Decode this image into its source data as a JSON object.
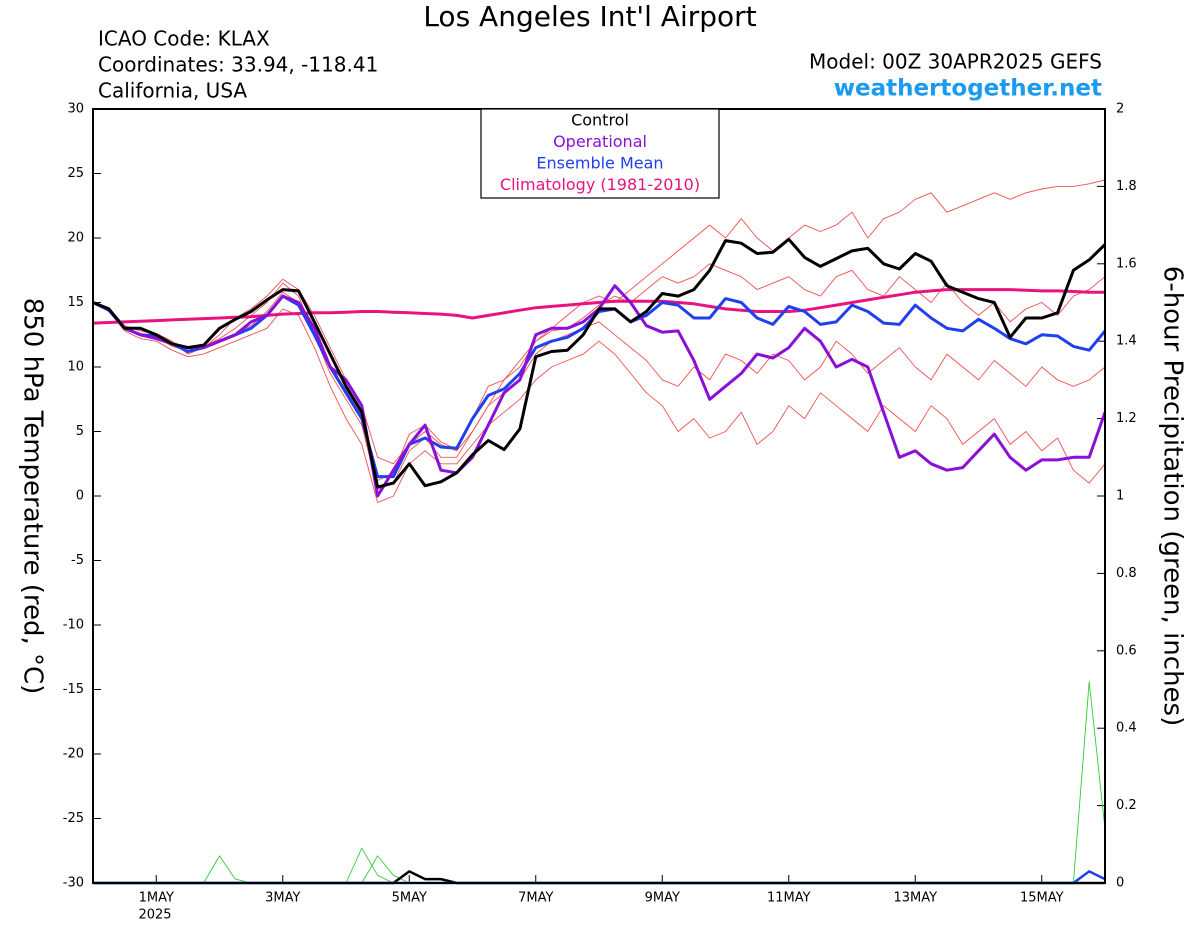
{
  "header": {
    "icao": "ICAO Code: KLAX",
    "coordinates": "Coordinates: 33.94, -118.41",
    "location": "California, USA",
    "model": "Model: 00Z 30APR2025 GEFS",
    "site": "weathertogether.net"
  },
  "chart_data": {
    "type": "line",
    "title": "Los Angeles Int'l Airport",
    "y_label": "850 hPa Temperature (red, °C)",
    "y2_label": "6-hour Precipitation (green, inches)",
    "year_label": "2025",
    "categories": [
      null,
      null,
      null,
      null,
      "1MAY",
      null,
      null,
      null,
      null,
      null,
      null,
      null,
      "3MAY",
      null,
      null,
      null,
      null,
      null,
      null,
      null,
      "5MAY",
      null,
      null,
      null,
      null,
      null,
      null,
      null,
      "7MAY",
      null,
      null,
      null,
      null,
      null,
      null,
      null,
      "9MAY",
      null,
      null,
      null,
      null,
      null,
      null,
      null,
      "11MAY",
      null,
      null,
      null,
      null,
      null,
      null,
      null,
      "13MAY",
      null,
      null,
      null,
      null,
      null,
      null,
      null,
      "15MAY",
      null,
      null,
      null,
      null
    ],
    "ylim": [
      -30,
      30
    ],
    "yticks": [
      -30,
      -25,
      -20,
      -15,
      -10,
      -5,
      0,
      5,
      10,
      15,
      20,
      25,
      30
    ],
    "y2lim": [
      0,
      2
    ],
    "y2ticks": [
      0,
      0.2,
      0.4,
      0.6,
      0.8,
      1,
      1.2,
      1.4,
      1.6,
      1.8,
      2
    ],
    "members": {
      "color": "#f05050",
      "values": [
        [
          15,
          14.6,
          13.2,
          12.8,
          12.6,
          12,
          11,
          11.5,
          12.5,
          13.8,
          14.5,
          15.5,
          16.8,
          16,
          14,
          11.5,
          9,
          7,
          3,
          2.5,
          4,
          5,
          4,
          3.5,
          5,
          7,
          9,
          10,
          12,
          13,
          14,
          15,
          15.5,
          15,
          16,
          17,
          18,
          19,
          20,
          21,
          20,
          21.5,
          20,
          19,
          20,
          21,
          20.5,
          21,
          22,
          20,
          21.5,
          22,
          23,
          23.5,
          22,
          22.5,
          23,
          23.5,
          23,
          23.5,
          23.8,
          24,
          24,
          24.2,
          24.5
        ],
        [
          15,
          14.3,
          12.8,
          12.2,
          12,
          11.3,
          10.8,
          11,
          11.5,
          12,
          12.5,
          13,
          14.5,
          14,
          11.5,
          8.5,
          6,
          4,
          -0.5,
          0,
          2.5,
          3.5,
          2.5,
          2.5,
          4,
          5.5,
          6.5,
          7.5,
          9,
          10,
          10.5,
          11,
          12,
          11,
          9.5,
          8,
          7,
          5,
          6,
          4.5,
          5,
          6.5,
          4,
          5,
          7,
          6,
          8,
          7,
          6,
          5,
          7,
          6,
          5,
          7,
          6,
          4,
          5,
          6,
          4,
          5,
          3.5,
          4.5,
          2,
          1,
          2.5
        ],
        [
          15,
          14.5,
          13.1,
          12.6,
          12.3,
          11.6,
          11.3,
          11.6,
          12.2,
          13,
          14,
          15,
          16.5,
          15.5,
          12.5,
          9.5,
          7.5,
          5.5,
          0.5,
          1,
          3.5,
          4.5,
          3,
          3,
          5,
          7,
          8,
          9,
          11,
          12,
          12.5,
          13,
          13.5,
          12.5,
          11.5,
          10.5,
          9,
          8.5,
          10,
          9,
          11,
          10.5,
          9.5,
          11,
          10.5,
          9,
          10,
          12,
          11,
          9.5,
          10.5,
          11.5,
          10,
          9,
          11,
          10,
          9,
          10.5,
          9.5,
          8.5,
          10,
          9,
          8.5,
          9,
          10
        ],
        [
          15,
          14.4,
          13,
          12.4,
          12.3,
          11.7,
          11.5,
          11.4,
          12,
          12.6,
          13.2,
          14.3,
          15.8,
          15,
          13,
          10.2,
          8.2,
          6.2,
          1.2,
          1.8,
          4.8,
          5.5,
          4.2,
          3.6,
          6,
          8.5,
          9,
          10.5,
          12,
          12.8,
          13,
          13.8,
          14.8,
          15.5,
          15,
          16,
          17,
          16.5,
          17,
          18,
          17.5,
          17,
          16,
          16.5,
          17,
          16,
          15.5,
          17,
          17.5,
          16,
          15.5,
          17,
          16,
          15,
          16.5,
          15,
          14,
          15,
          13.5,
          14.5,
          15,
          14,
          15.5,
          16,
          17
        ]
      ]
    },
    "precip_series": [
      {
        "color": "#33cc33",
        "axis": "y2",
        "values": [
          0,
          0,
          0,
          0,
          0,
          0,
          0,
          0,
          0,
          0,
          0,
          0,
          0,
          0,
          0,
          0,
          0,
          0.09,
          0.02,
          0,
          0,
          0,
          0,
          0,
          0,
          0,
          0,
          0,
          0,
          0,
          0,
          0,
          0,
          0,
          0,
          0,
          0,
          0,
          0,
          0,
          0,
          0,
          0,
          0,
          0,
          0,
          0,
          0,
          0,
          0,
          0,
          0,
          0,
          0,
          0,
          0,
          0,
          0,
          0,
          0,
          0,
          0,
          0,
          0,
          0
        ]
      },
      {
        "color": "#33cc33",
        "axis": "y2",
        "values": [
          0,
          0,
          0,
          0,
          0,
          0,
          0,
          0,
          0.07,
          0.01,
          0,
          0,
          0,
          0,
          0,
          0,
          0,
          0,
          0.07,
          0.02,
          0,
          0,
          0,
          0,
          0,
          0,
          0,
          0,
          0,
          0,
          0,
          0,
          0,
          0,
          0,
          0,
          0,
          0,
          0,
          0,
          0,
          0,
          0,
          0,
          0,
          0,
          0,
          0,
          0,
          0,
          0,
          0,
          0,
          0,
          0,
          0,
          0,
          0,
          0,
          0,
          0,
          0,
          0,
          0.52,
          0.14
        ]
      },
      {
        "color": "#000000",
        "axis": "y2",
        "values": [
          0,
          0,
          0,
          0,
          0,
          0,
          0,
          0,
          0,
          0,
          0,
          0,
          0,
          0,
          0,
          0,
          0,
          0,
          0,
          0,
          0.03,
          0.01,
          0.01,
          0,
          0,
          0,
          0,
          0,
          0,
          0,
          0,
          0,
          0,
          0,
          0,
          0,
          0,
          0,
          0,
          0,
          0,
          0,
          0,
          0,
          0,
          0,
          0,
          0,
          0,
          0,
          0,
          0,
          0,
          0,
          0,
          0,
          0,
          0,
          0,
          0,
          0,
          0,
          0,
          0,
          0
        ]
      },
      {
        "color": "#2040f0",
        "axis": "y2",
        "values": [
          0,
          0,
          0,
          0,
          0,
          0,
          0,
          0,
          0,
          0,
          0,
          0,
          0,
          0,
          0,
          0,
          0,
          0,
          0,
          0,
          0,
          0,
          0,
          0,
          0,
          0,
          0,
          0,
          0,
          0,
          0,
          0,
          0,
          0,
          0,
          0,
          0,
          0,
          0,
          0,
          0,
          0,
          0,
          0,
          0,
          0,
          0,
          0,
          0,
          0,
          0,
          0,
          0,
          0,
          0,
          0,
          0,
          0,
          0,
          0,
          0,
          0,
          0,
          0.03,
          0.01
        ]
      }
    ],
    "series": [
      {
        "name": "Control",
        "color": "#000000",
        "values": [
          15,
          14.5,
          13,
          13,
          12.5,
          11.8,
          11.5,
          11.7,
          13,
          13.7,
          14.3,
          15.2,
          16,
          15.9,
          13.5,
          11,
          8.5,
          6.5,
          0.7,
          1,
          2.5,
          0.8,
          1.1,
          1.8,
          3.2,
          4.3,
          3.6,
          5.2,
          10.8,
          11.2,
          11.3,
          12.5,
          14.5,
          14.5,
          13.5,
          14.3,
          15.7,
          15.5,
          16,
          17.5,
          19.8,
          19.6,
          18.8,
          18.9,
          19.9,
          18.5,
          17.8,
          18.4,
          19,
          19.2,
          18,
          17.6,
          18.8,
          18.2,
          16.3,
          15.8,
          15.3,
          15,
          12.3,
          13.8,
          13.8,
          14.2,
          17.5,
          18.3,
          19.5
        ]
      },
      {
        "name": "Operational",
        "color": "#8a10d8",
        "values": [
          15,
          14.5,
          13,
          12.5,
          12.2,
          11.8,
          11.5,
          11.5,
          12,
          12.5,
          13.5,
          14,
          15.5,
          15,
          13,
          10,
          9,
          7,
          0,
          2,
          4,
          5.5,
          2,
          1.8,
          3,
          5.5,
          8,
          9,
          12.5,
          13,
          13,
          13.5,
          14.5,
          16.3,
          15,
          13.2,
          12.7,
          12.8,
          10.5,
          7.5,
          8.5,
          9.5,
          11,
          10.7,
          11.5,
          13,
          12,
          10,
          10.6,
          10,
          6.5,
          3,
          3.5,
          2.5,
          2,
          2.2,
          3.5,
          4.8,
          3,
          2,
          2.8,
          2.8,
          3,
          3,
          6.5
        ]
      },
      {
        "name": "Ensemble Mean",
        "color": "#2040f0",
        "values": [
          15,
          14.4,
          13,
          12.5,
          12.4,
          11.8,
          11.2,
          11.5,
          12,
          12.5,
          13,
          14,
          15.5,
          14.8,
          12.5,
          10,
          8,
          6,
          1.5,
          1.5,
          4,
          4.5,
          3.8,
          3.7,
          6,
          7.8,
          8.3,
          9.5,
          11.5,
          12,
          12.3,
          13,
          14.3,
          14.5,
          13.5,
          14,
          15,
          14.8,
          13.8,
          13.8,
          15.3,
          15,
          13.8,
          13.3,
          14.7,
          14.3,
          13.3,
          13.5,
          14.8,
          14.3,
          13.4,
          13.3,
          14.8,
          13.8,
          13,
          12.8,
          13.7,
          13,
          12.2,
          11.8,
          12.5,
          12.4,
          11.6,
          11.3,
          12.8
        ]
      },
      {
        "name": "Climatology (1981-2010)",
        "color": "#e8137f",
        "values": [
          13.4,
          13.45,
          13.5,
          13.55,
          13.6,
          13.65,
          13.7,
          13.75,
          13.8,
          13.85,
          13.9,
          14,
          14.1,
          14.15,
          14.2,
          14.2,
          14.25,
          14.3,
          14.3,
          14.25,
          14.2,
          14.15,
          14.1,
          14,
          13.8,
          14,
          14.2,
          14.4,
          14.6,
          14.7,
          14.8,
          14.9,
          15,
          15.1,
          15.1,
          15.1,
          15.1,
          15,
          14.9,
          14.7,
          14.5,
          14.4,
          14.3,
          14.3,
          14.3,
          14.4,
          14.6,
          14.8,
          15,
          15.2,
          15.4,
          15.6,
          15.8,
          15.9,
          16,
          16,
          16,
          16,
          16,
          15.95,
          15.9,
          15.9,
          15.85,
          15.8,
          15.8
        ]
      }
    ]
  }
}
